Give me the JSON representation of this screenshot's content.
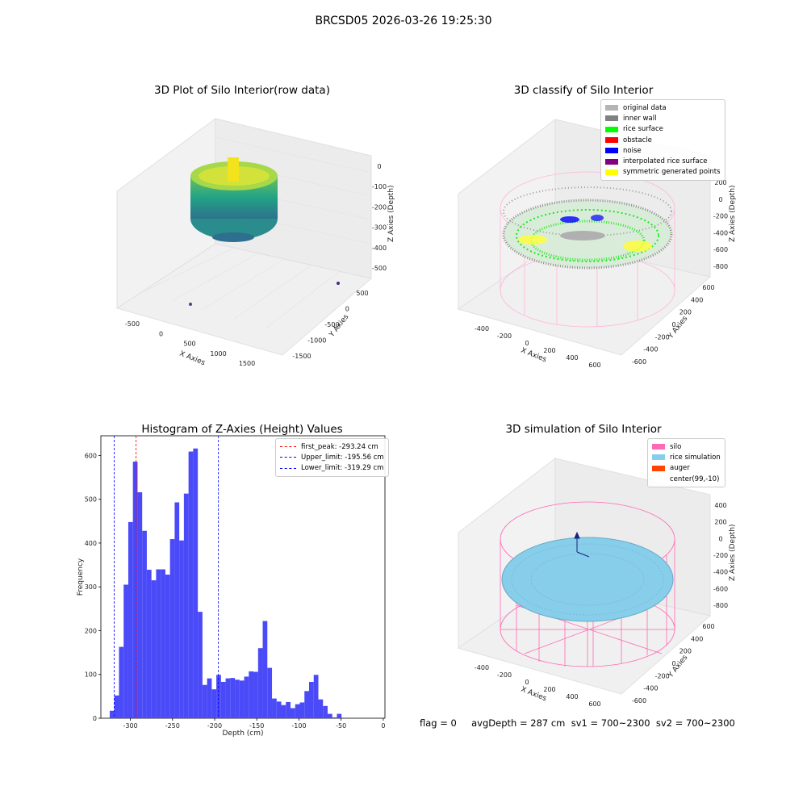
{
  "suptitle": "BRCSD05 2026-03-26 19:25:30",
  "panels": {
    "raw": {
      "title": "3D Plot of Silo Interior(row data)",
      "xlabel": "X Axies",
      "ylabel": "Y Axies",
      "zlabel": "Z Axies (Depth)",
      "xticks": [
        "-500",
        "0",
        "500",
        "1000",
        "1500"
      ],
      "yticks": [
        "500",
        "0",
        "-500",
        "-1000",
        "-1500"
      ],
      "zticks": [
        "0",
        "-100",
        "-200",
        "-300",
        "-400",
        "-500"
      ]
    },
    "classify": {
      "title": "3D classify of Silo Interior",
      "xlabel": "X Axies",
      "ylabel": "Y Axies",
      "zlabel": "Z Axies (Depth)",
      "xticks": [
        "-400",
        "-200",
        "0",
        "200",
        "400",
        "600"
      ],
      "yticks": [
        "600",
        "400",
        "200",
        "0",
        "-200",
        "-400",
        "-600"
      ],
      "zticks": [
        "200",
        "0",
        "-200",
        "-400",
        "-600",
        "-800"
      ],
      "legend": [
        {
          "label": "original data",
          "color": "#b4b4b4"
        },
        {
          "label": "inner wall",
          "color": "#808080"
        },
        {
          "label": "rice surface",
          "color": "#00ff00"
        },
        {
          "label": "obstacle",
          "color": "#ff0000"
        },
        {
          "label": "noise",
          "color": "#0000ff"
        },
        {
          "label": "interpolated rice surface",
          "color": "#800080"
        },
        {
          "label": "symmetric generated points",
          "color": "#ffff00"
        }
      ]
    },
    "simulation": {
      "title": "3D simulation of Silo Interior",
      "xlabel": "X Axies",
      "ylabel": "Y Axies",
      "zlabel": "Z Axies (Depth)",
      "xticks": [
        "-400",
        "-200",
        "0",
        "200",
        "400",
        "600"
      ],
      "yticks": [
        "600",
        "400",
        "200",
        "0",
        "-200",
        "-400",
        "-600"
      ],
      "zticks": [
        "400",
        "200",
        "0",
        "-200",
        "-400",
        "-600",
        "-800"
      ],
      "legend": [
        {
          "label": "silo",
          "color": "#ff69b4"
        },
        {
          "label": "rice simulation",
          "color": "#87ceeb"
        },
        {
          "label": "auger",
          "color": "#ff4500"
        },
        {
          "label": "center(99,-10)",
          "color": ""
        }
      ]
    }
  },
  "footer": "flag = 0     avgDepth = 287 cm  sv1 = 700~2300  sv2 = 700~2300",
  "chart_data": [
    {
      "type": "bar",
      "title": "Histogram of Z-Axies (Height) Values",
      "xlabel": "Depth (cm)",
      "ylabel": "Frequency",
      "xlim": [
        -335,
        2
      ],
      "ylim": [
        0,
        645
      ],
      "xticks": [
        -300,
        -250,
        -200,
        -150,
        -100,
        -50,
        0
      ],
      "yticks": [
        0,
        100,
        200,
        300,
        400,
        500,
        600
      ],
      "bar_color": "#4a4af8",
      "bins": {
        "start": -324.5,
        "width": 5.5,
        "values": [
          17,
          52,
          163,
          305,
          448,
          586,
          516,
          428,
          339,
          315,
          340,
          340,
          328,
          409,
          493,
          406,
          513,
          609,
          616,
          243,
          76,
          91,
          66,
          99,
          83,
          91,
          92,
          88,
          86,
          95,
          107,
          106,
          160,
          222,
          115,
          45,
          38,
          30,
          37,
          23,
          32,
          36,
          62,
          83,
          99,
          43,
          28,
          10,
          2,
          10
        ]
      },
      "vlines": [
        {
          "label": "first_peak: -293.24 cm",
          "x": -293.24,
          "color": "#ff0000"
        },
        {
          "label": "Upper_limit: -195.56 cm",
          "x": -195.56,
          "color": "#0000ff"
        },
        {
          "label": "Lower_limit: -319.29 cm",
          "x": -319.29,
          "color": "#0000ff"
        }
      ],
      "legend_position": "top-right"
    }
  ]
}
